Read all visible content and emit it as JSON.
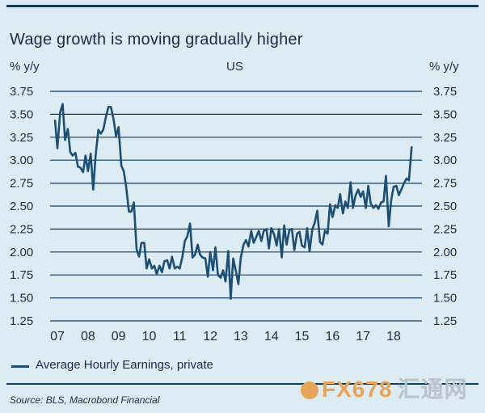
{
  "header": {
    "title": "Wage growth is moving gradually higher",
    "unit_left": "% y/y",
    "unit_right": "% y/y",
    "subtitle": "US"
  },
  "legend": {
    "label": "Average Hourly Earnings, private",
    "color": "#1d4f74"
  },
  "footer": {
    "source": "Source: BLS, Macrobond Financial"
  },
  "watermark": {
    "text": "FX678",
    "text2": "汇通网"
  },
  "colors": {
    "line": "#1d4f74",
    "grid": "#123b5e",
    "background": "#dcecf2"
  },
  "chart_data": {
    "type": "line",
    "title": "Wage growth is moving gradually higher",
    "subtitle": "US",
    "ylabel": "% y/y",
    "ylim": [
      1.25,
      3.75
    ],
    "y_ticks_left": [
      "3.75",
      "3.50",
      "3.25",
      "3.00",
      "2.75",
      "2.50",
      "2.25",
      "2.00",
      "1.75",
      "1.50",
      "1.25"
    ],
    "y_ticks_right": [
      "3.75",
      "3.50",
      "3.25",
      "3.00",
      "2.75",
      "2.50",
      "2.25",
      "2.00",
      "1.75",
      "1.50",
      "1.25"
    ],
    "x_ticks": [
      "07",
      "08",
      "09",
      "10",
      "11",
      "12",
      "13",
      "14",
      "15",
      "16",
      "17",
      "18"
    ],
    "xlim": [
      2007.0,
      2018.9
    ],
    "grid": "horizontal",
    "series": [
      {
        "name": "Average Hourly Earnings, private",
        "x": [
          2007.0,
          2007.08,
          2007.17,
          2007.25,
          2007.33,
          2007.42,
          2007.5,
          2007.58,
          2007.67,
          2007.75,
          2007.83,
          2007.92,
          2008.0,
          2008.08,
          2008.17,
          2008.25,
          2008.33,
          2008.42,
          2008.5,
          2008.58,
          2008.67,
          2008.75,
          2008.83,
          2008.92,
          2009.0,
          2009.08,
          2009.17,
          2009.25,
          2009.33,
          2009.42,
          2009.5,
          2009.58,
          2009.67,
          2009.75,
          2009.83,
          2009.92,
          2010.0,
          2010.08,
          2010.17,
          2010.25,
          2010.33,
          2010.42,
          2010.5,
          2010.58,
          2010.67,
          2010.75,
          2010.83,
          2010.92,
          2011.0,
          2011.08,
          2011.17,
          2011.25,
          2011.33,
          2011.42,
          2011.5,
          2011.58,
          2011.67,
          2011.75,
          2011.83,
          2011.92,
          2012.0,
          2012.08,
          2012.17,
          2012.25,
          2012.33,
          2012.42,
          2012.5,
          2012.58,
          2012.67,
          2012.75,
          2012.83,
          2012.92,
          2013.0,
          2013.08,
          2013.17,
          2013.25,
          2013.33,
          2013.42,
          2013.5,
          2013.58,
          2013.67,
          2013.75,
          2013.83,
          2013.92,
          2014.0,
          2014.08,
          2014.17,
          2014.25,
          2014.33,
          2014.42,
          2014.5,
          2014.58,
          2014.67,
          2014.75,
          2014.83,
          2014.92,
          2015.0,
          2015.08,
          2015.17,
          2015.25,
          2015.33,
          2015.42,
          2015.5,
          2015.58,
          2015.67,
          2015.75,
          2015.83,
          2015.92,
          2016.0,
          2016.08,
          2016.17,
          2016.25,
          2016.33,
          2016.42,
          2016.5,
          2016.58,
          2016.67,
          2016.75,
          2016.83,
          2016.92,
          2017.0,
          2017.08,
          2017.17,
          2017.25,
          2017.33,
          2017.42,
          2017.5,
          2017.58,
          2017.67,
          2017.75,
          2017.83,
          2017.92,
          2018.0,
          2018.08,
          2018.17,
          2018.25,
          2018.33,
          2018.42,
          2018.5,
          2018.58,
          2018.67
        ],
        "values": [
          3.44,
          3.13,
          3.52,
          3.61,
          3.22,
          3.34,
          3.09,
          3.05,
          3.08,
          2.93,
          2.92,
          2.87,
          3.05,
          2.88,
          3.07,
          2.68,
          3.05,
          3.33,
          3.29,
          3.33,
          3.48,
          3.58,
          3.58,
          3.44,
          3.26,
          3.36,
          2.94,
          2.88,
          2.71,
          2.44,
          2.44,
          2.54,
          2.03,
          1.95,
          2.1,
          2.1,
          1.82,
          1.92,
          1.82,
          1.85,
          1.76,
          1.85,
          1.78,
          1.9,
          1.91,
          1.82,
          1.95,
          1.82,
          1.84,
          1.82,
          1.95,
          2.12,
          2.17,
          2.31,
          1.94,
          1.97,
          2.08,
          1.97,
          1.94,
          1.93,
          1.73,
          2.0,
          1.8,
          2.05,
          1.75,
          1.72,
          1.8,
          1.68,
          2.01,
          1.49,
          1.93,
          1.79,
          1.65,
          1.94,
          2.08,
          2.13,
          2.06,
          2.23,
          2.1,
          2.16,
          2.23,
          2.12,
          2.23,
          2.25,
          2.04,
          2.26,
          2.19,
          2.07,
          2.25,
          1.94,
          2.29,
          2.08,
          2.24,
          2.25,
          2.02,
          2.2,
          2.22,
          2.07,
          2.05,
          2.26,
          2.01,
          2.25,
          2.32,
          2.45,
          2.11,
          2.08,
          2.23,
          2.2,
          2.52,
          2.38,
          2.51,
          2.48,
          2.63,
          2.42,
          2.55,
          2.48,
          2.76,
          2.48,
          2.61,
          2.68,
          2.6,
          2.66,
          2.48,
          2.72,
          2.53,
          2.48,
          2.51,
          2.47,
          2.54,
          2.55,
          2.83,
          2.28,
          2.57,
          2.71,
          2.72,
          2.62,
          2.68,
          2.75,
          2.8,
          2.78,
          3.15
        ]
      }
    ]
  }
}
